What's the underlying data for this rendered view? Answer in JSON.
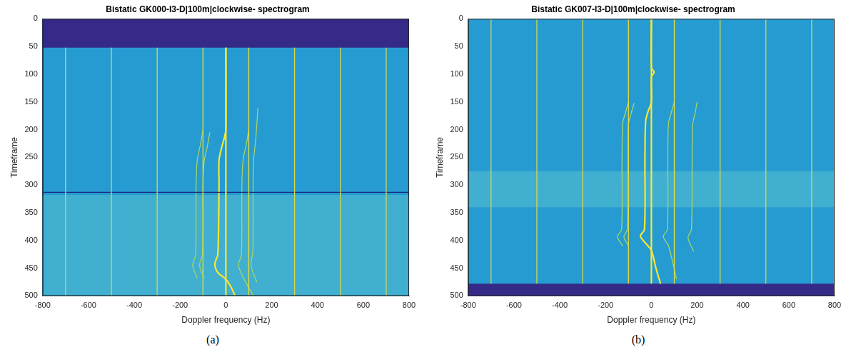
{
  "chart_data": [
    {
      "type": "spectrogram",
      "title": "Bistatic GK000-I3-D|100m|clockwise- spectrogram",
      "caption": "(a)",
      "x_label": "Doppler frequency (Hz)",
      "y_label": "Timeframe",
      "color": "#259bd2",
      "grid": false,
      "xlim": [
        -800,
        800
      ],
      "xticks": [
        -800,
        -600,
        -400,
        -200,
        0,
        200,
        400,
        600,
        800
      ],
      "ylim": [
        0,
        500
      ],
      "yticks": [
        0,
        50,
        100,
        150,
        200,
        250,
        300,
        350,
        400,
        450,
        500
      ],
      "bands": [
        {
          "y": [
            0,
            52
          ],
          "color": "#352a87"
        },
        {
          "y": [
            318,
            500
          ],
          "color": "#41afd0"
        }
      ],
      "series": [
        {
          "color": "#d6d84a",
          "x": [
            -700,
            -700
          ],
          "values": [
            52,
            500
          ]
        },
        {
          "color": "#d6d84a",
          "x": [
            -500,
            -500
          ],
          "values": [
            52,
            500
          ]
        },
        {
          "color": "#d6d84a",
          "x": [
            -300,
            -300
          ],
          "values": [
            52,
            500
          ]
        },
        {
          "color": "#e6dc3c",
          "x": [
            -100,
            -100
          ],
          "values": [
            52,
            500
          ]
        },
        {
          "color": "#f7e735",
          "x": [
            0,
            0
          ],
          "values": [
            52,
            500
          ]
        },
        {
          "color": "#e6dc3c",
          "x": [
            100,
            100
          ],
          "values": [
            52,
            500
          ]
        },
        {
          "color": "#d6d84a",
          "x": [
            300,
            300
          ],
          "values": [
            52,
            500
          ]
        },
        {
          "color": "#d6d84a",
          "x": [
            500,
            500
          ],
          "values": [
            52,
            500
          ]
        },
        {
          "color": "#d6d84a",
          "x": [
            700,
            700
          ],
          "values": [
            52,
            500
          ]
        },
        {
          "color": "#1b2a7a",
          "x": [
            -800,
            800
          ],
          "values": [
            313,
            313
          ]
        },
        {
          "color": "#f7e735",
          "x": [
            0,
            0,
            -5,
            -20,
            -30,
            -30,
            -35,
            -48,
            -35,
            -5,
            20,
            40
          ],
          "values": [
            52,
            200,
            212,
            235,
            255,
            300,
            425,
            442,
            458,
            468,
            482,
            500
          ]
        },
        {
          "color": "#a6d46a",
          "x": [
            -100,
            -110,
            -125,
            -130,
            -132,
            -145,
            -125
          ],
          "values": [
            200,
            225,
            255,
            300,
            425,
            445,
            468
          ]
        },
        {
          "color": "#a6d46a",
          "x": [
            -70,
            -80,
            -95,
            -100,
            -102,
            -115,
            -95
          ],
          "values": [
            205,
            228,
            258,
            300,
            425,
            445,
            468
          ]
        },
        {
          "color": "#a6d46a",
          "x": [
            100,
            90,
            75,
            70,
            68,
            55,
            80,
            120
          ],
          "values": [
            200,
            225,
            255,
            300,
            425,
            445,
            470,
            500
          ]
        },
        {
          "color": "#a6d46a",
          "x": [
            140,
            130,
            120,
            118,
            110,
            135
          ],
          "values": [
            160,
            220,
            260,
            420,
            445,
            475
          ]
        }
      ]
    },
    {
      "type": "spectrogram",
      "title": "Bistatic GK007-I3-D|100m|clockwise- spectrogram",
      "caption": "(b)",
      "x_label": "Doppler frequency (Hz)",
      "y_label": "Timeframe",
      "color": "#259bd2",
      "grid": false,
      "xlim": [
        -800,
        800
      ],
      "xticks": [
        -800,
        -600,
        -400,
        -200,
        0,
        200,
        400,
        600,
        800
      ],
      "ylim": [
        0,
        500
      ],
      "yticks": [
        0,
        50,
        100,
        150,
        200,
        250,
        300,
        350,
        400,
        450,
        500
      ],
      "bands": [
        {
          "y": [
            275,
            340
          ],
          "color": "#41afd0"
        },
        {
          "y": [
            478,
            500
          ],
          "color": "#352a87"
        }
      ],
      "series": [
        {
          "color": "#d6d84a",
          "x": [
            -700,
            -700
          ],
          "values": [
            0,
            478
          ]
        },
        {
          "color": "#d6d84a",
          "x": [
            -500,
            -500
          ],
          "values": [
            0,
            478
          ]
        },
        {
          "color": "#d6d84a",
          "x": [
            -300,
            -300
          ],
          "values": [
            0,
            478
          ]
        },
        {
          "color": "#e6dc3c",
          "x": [
            -100,
            -100
          ],
          "values": [
            0,
            478
          ]
        },
        {
          "color": "#f7e735",
          "x": [
            0,
            0
          ],
          "values": [
            0,
            478
          ]
        },
        {
          "color": "#e6dc3c",
          "x": [
            100,
            100
          ],
          "values": [
            0,
            478
          ]
        },
        {
          "color": "#d6d84a",
          "x": [
            300,
            300
          ],
          "values": [
            0,
            478
          ]
        },
        {
          "color": "#d6d84a",
          "x": [
            500,
            500
          ],
          "values": [
            0,
            478
          ]
        },
        {
          "color": "#d6d84a",
          "x": [
            700,
            700
          ],
          "values": [
            0,
            478
          ]
        },
        {
          "color": "#f7e735",
          "x": [
            0,
            0,
            12,
            0,
            0,
            -15,
            -25,
            -28,
            -30,
            -48,
            -25,
            0,
            20,
            40
          ],
          "values": [
            0,
            88,
            96,
            105,
            150,
            168,
            185,
            250,
            380,
            392,
            405,
            418,
            450,
            478
          ]
        },
        {
          "color": "#a6d46a",
          "x": [
            -100,
            -112,
            -125,
            -128,
            -130,
            -148,
            -125
          ],
          "values": [
            150,
            168,
            188,
            250,
            380,
            393,
            410
          ]
        },
        {
          "color": "#a6d46a",
          "x": [
            -75,
            -88,
            -100,
            -102,
            -105,
            -120,
            -100
          ],
          "values": [
            152,
            170,
            190,
            250,
            380,
            393,
            410
          ]
        },
        {
          "color": "#a6d46a",
          "x": [
            100,
            88,
            75,
            72,
            70,
            52,
            75,
            110
          ],
          "values": [
            150,
            168,
            188,
            250,
            380,
            393,
            410,
            470
          ]
        },
        {
          "color": "#a6d46a",
          "x": [
            200,
            190,
            180,
            178,
            175,
            160,
            185
          ],
          "values": [
            150,
            172,
            192,
            260,
            380,
            395,
            420
          ]
        }
      ]
    }
  ]
}
